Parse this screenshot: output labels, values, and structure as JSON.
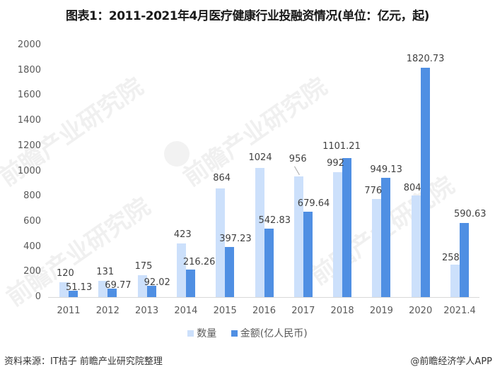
{
  "header": {
    "title": "图表1：2011-2021年4月医疗健康行业投融资情况(单位：亿元，起)"
  },
  "legend": {
    "items": [
      {
        "label": "数量",
        "color": "#cce0fb"
      },
      {
        "label": "金额(亿人民币)",
        "color": "#4f8fe3"
      }
    ]
  },
  "footer": {
    "source": "资料来源：IT桔子 前瞻产业研究院整理",
    "brand": "@前瞻经济学人APP"
  },
  "watermark": {
    "text": "前瞻产业研究院"
  },
  "chart_data": {
    "type": "bar",
    "title": "图表1：2011-2021年4月医疗健康行业投融资情况(单位：亿元，起)",
    "xlabel": "",
    "ylabel": "",
    "ylim": [
      0,
      2000
    ],
    "yticks": [
      0,
      200,
      400,
      600,
      800,
      1000,
      1200,
      1400,
      1600,
      1800,
      2000
    ],
    "grid": false,
    "legend_position": "bottom",
    "categories": [
      "2011",
      "2012",
      "2013",
      "2014",
      "2015",
      "2016",
      "2017",
      "2018",
      "2019",
      "2020",
      "2021.4"
    ],
    "series": [
      {
        "name": "数量",
        "color": "#cce0fb",
        "values": [
          120,
          131,
          175,
          423,
          864,
          1024,
          956,
          992,
          776,
          804,
          258
        ]
      },
      {
        "name": "金额(亿人民币)",
        "color": "#4f8fe3",
        "values": [
          51.13,
          69.77,
          92.02,
          216.26,
          397.23,
          542.83,
          679.64,
          1101.21,
          949.13,
          1820.73,
          590.63
        ]
      }
    ],
    "labels": {
      "count": [
        "120",
        "131",
        "175",
        "423",
        "864",
        "1024",
        "956",
        "992",
        "776",
        "804",
        "258"
      ],
      "amount": [
        "51.13",
        "69.77",
        "92.02",
        "216.26",
        "397.23",
        "542.83",
        "679.64",
        "1101.21",
        "949.13",
        "1820.73",
        "590.63"
      ]
    }
  }
}
